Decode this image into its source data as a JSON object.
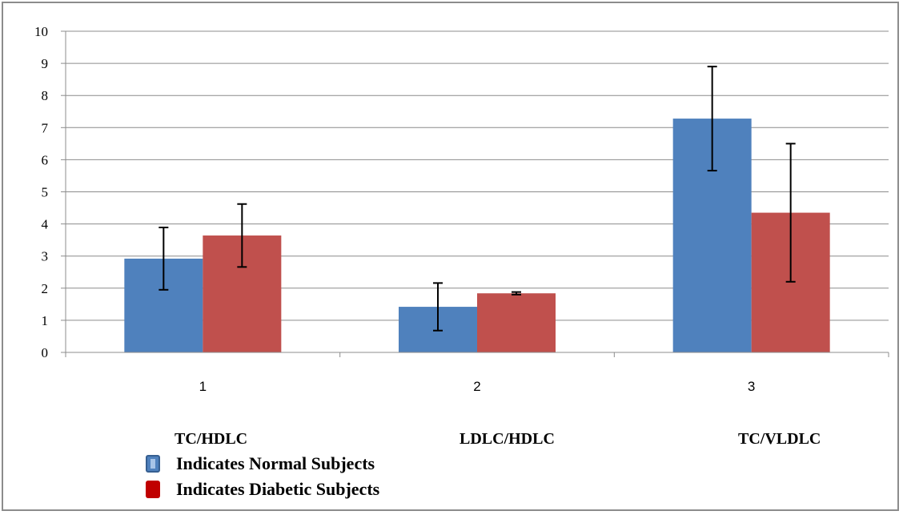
{
  "chart_data": {
    "type": "bar",
    "categories": [
      "1",
      "2",
      "3"
    ],
    "category_names": [
      "TC/HDLC",
      "LDLC/HDLC",
      "TC/VLDLC"
    ],
    "ylim": [
      0,
      10
    ],
    "yticks": [
      "0",
      "1",
      "2",
      "3",
      "4",
      "5",
      "6",
      "7",
      "8",
      "9",
      "10"
    ],
    "grid": true,
    "series": [
      {
        "name": "Indicates Normal Subjects",
        "color": "#4f81bd",
        "values": [
          2.92,
          1.42,
          7.28
        ],
        "error": [
          0.97,
          0.74,
          1.62
        ]
      },
      {
        "name": "Indicates Diabetic Subjects",
        "color": "#c0504d",
        "values": [
          3.64,
          1.84,
          4.35
        ],
        "error": [
          0.98,
          0.04,
          2.15
        ]
      }
    ]
  },
  "legend": {
    "normal_label": "Indicates Normal Subjects",
    "diabetic_label": "Indicates Diabetic Subjects",
    "normal_swatch_color": "#4f81bd",
    "diabetic_swatch_color": "#c00000"
  }
}
